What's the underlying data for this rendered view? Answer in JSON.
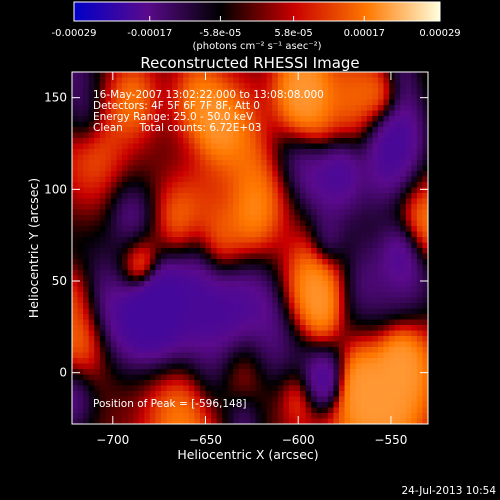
{
  "colorbar": {
    "ticks": [
      "-0.00029",
      "-0.00017",
      "-5.8e-05",
      "5.8e-05",
      "0.00017",
      "0.00029"
    ],
    "tick_values": [
      -0.00029,
      -0.00017,
      -5.8e-05,
      5.8e-05,
      0.00017,
      0.00029
    ],
    "range": [
      -0.00029,
      0.00029
    ],
    "unit_label": "(photons cm⁻² s⁻¹ asec⁻²)",
    "colors": [
      "#0000c8",
      "#5a0a8c",
      "#000000",
      "#c80000",
      "#ff7800",
      "#ffffdc"
    ]
  },
  "chart_data": {
    "type": "heatmap",
    "title": "Reconstructed RHESSI Image",
    "xlabel": "Heliocentric X (arcsec)",
    "ylabel": "Heliocentric Y (arcsec)",
    "xlim": [
      -722,
      -530
    ],
    "ylim": [
      -28,
      164
    ],
    "xticks": [
      -700,
      -650,
      -600,
      -550
    ],
    "yticks": [
      0,
      50,
      100,
      150
    ],
    "xtick_labels": [
      "−700",
      "−650",
      "−600",
      "−550"
    ],
    "ytick_labels": [
      "0",
      "50",
      "100",
      "150"
    ],
    "peak_position": [
      -596,
      148
    ],
    "total_counts": 6720,
    "info_lines": [
      "16-May-2007 13:02:22.000 to 13:08:08.000",
      "Detectors: 4F 5F 6F 7F 8F, Att 0",
      "Energy Range: 25.0 - 50.0 keV",
      "Clean     Total counts: 6.72E+03"
    ],
    "peak_label": "Position of Peak = [-596,148]"
  },
  "footer": {
    "timestamp": "24-Jul-2013 10:54"
  }
}
